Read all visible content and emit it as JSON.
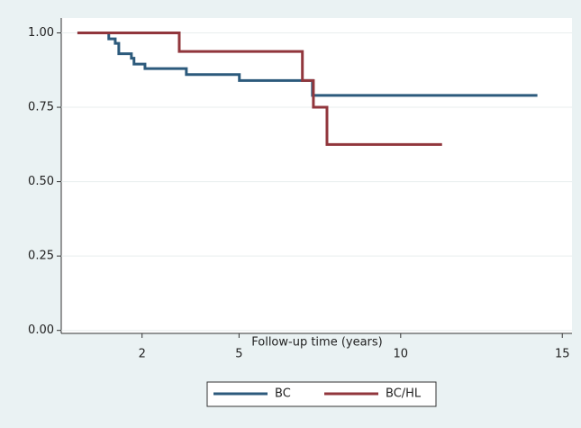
{
  "chart_data": {
    "type": "step",
    "x_label": "Follow-up time (years)",
    "xlim": [
      -0.5,
      15.3
    ],
    "xticks": [
      2,
      5,
      10,
      15
    ],
    "ylim": [
      -0.01,
      1.05
    ],
    "yticks": [
      {
        "value": 0,
        "label": "0.00"
      },
      {
        "value": 0.25,
        "label": "0.25"
      },
      {
        "value": 0.5,
        "label": "0.50"
      },
      {
        "value": 0.75,
        "label": "0.75"
      },
      {
        "value": 1,
        "label": "1.00"
      }
    ],
    "grid": true,
    "legend": "bottom",
    "series": [
      {
        "name": "BC",
        "color": "#2c5a7c",
        "x": [
          0,
          0.97,
          1.17,
          1.28,
          1.67,
          1.75,
          2.09,
          3.37,
          5.01,
          7.27,
          14.23
        ],
        "values": [
          1,
          0.98,
          0.965,
          0.93,
          0.915,
          0.895,
          0.88,
          0.86,
          0.84,
          0.79,
          0.79
        ]
      },
      {
        "name": "BC/HL",
        "color": "#91363c",
        "x": [
          0,
          3.15,
          6.96,
          7.3,
          7.72,
          11.28
        ],
        "values": [
          1,
          0.9375,
          0.84,
          0.75,
          0.625,
          0.625
        ]
      }
    ]
  }
}
